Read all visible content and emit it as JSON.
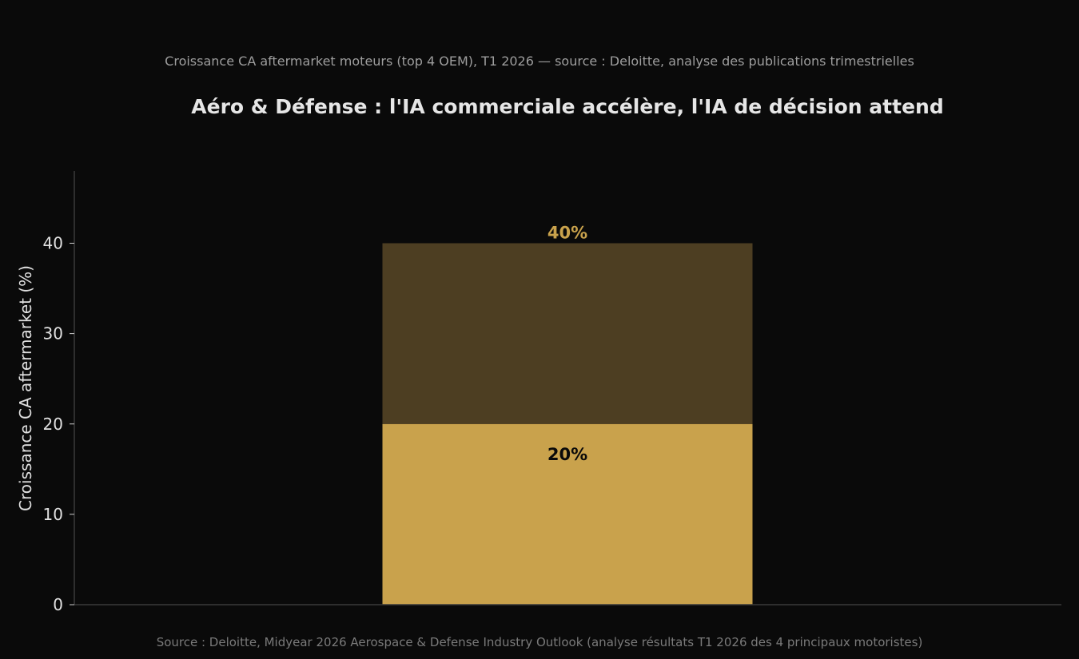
{
  "chart_data": {
    "type": "bar",
    "stacked": true,
    "subtitle": "Croissance CA aftermarket moteurs (top 4 OEM), T1 2026 — source : Deloitte, analyse des publications trimestrielles",
    "title": "Aéro & Défense : l'IA commerciale accélère, l'IA de décision attend",
    "xlabel": "",
    "ylabel": "Croissance CA aftermarket (%)",
    "ylim": [
      0,
      48
    ],
    "yticks": [
      0,
      10,
      20,
      30,
      40
    ],
    "categories": [
      ""
    ],
    "series": [
      {
        "values": [
          20
        ],
        "color": "#c9a24c",
        "label": "20%",
        "label_color": "#0a0a0a"
      },
      {
        "values": [
          20
        ],
        "color": "#4d3e22",
        "total_label": "40%",
        "label_color": "#c9a24c"
      }
    ],
    "grid": false,
    "legend": "none",
    "source": "Source : Deloitte, Midyear 2026 Aerospace & Defense Industry Outlook (analyse résultats T1 2026 des 4 principaux motoristes)"
  },
  "colors": {
    "background": "#0a0a0a",
    "axis": "#3a3a3a",
    "accent": "#c9a24c",
    "accent_dark": "#4d3e22"
  }
}
